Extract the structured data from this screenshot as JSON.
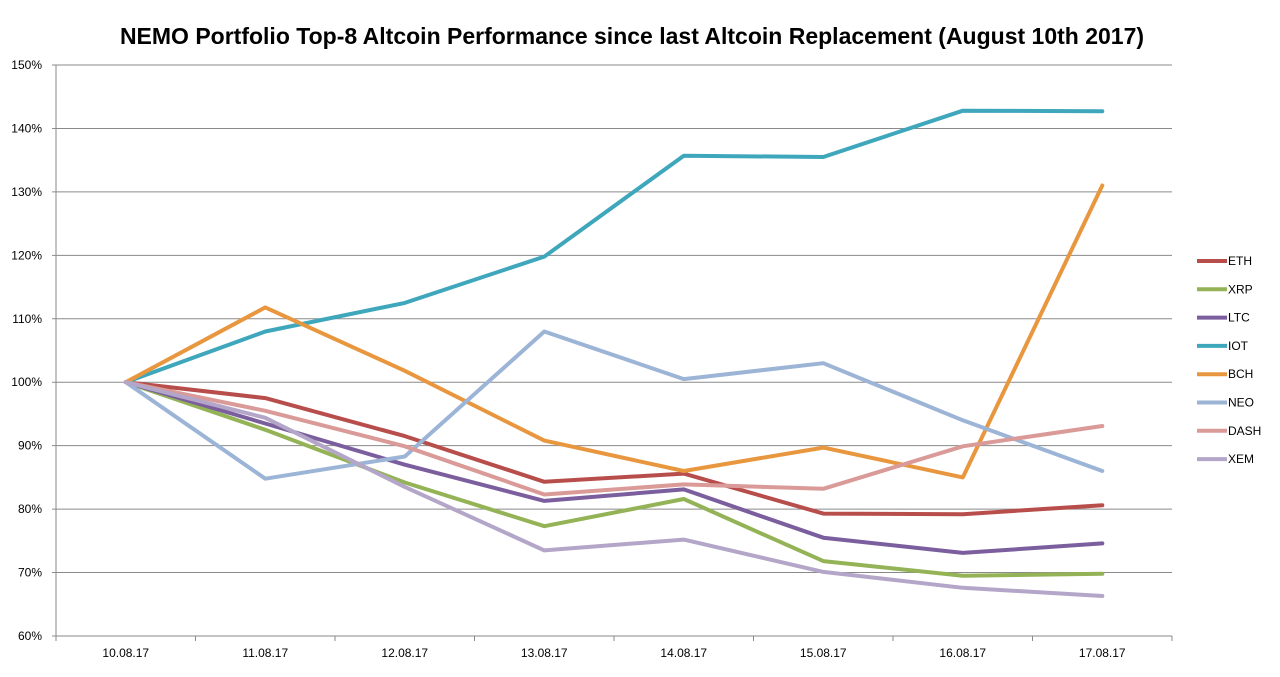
{
  "chart_data": {
    "type": "line",
    "title": "NEMO Portfolio Top-8 Altcoin Performance since last Altcoin Replacement (August 10th 2017)",
    "xlabel": "",
    "ylabel": "",
    "categories": [
      "10.08.17",
      "11.08.17",
      "12.08.17",
      "13.08.17",
      "14.08.17",
      "15.08.17",
      "16.08.17",
      "17.08.17"
    ],
    "ylim": [
      60,
      150
    ],
    "yticks": [
      60,
      70,
      80,
      90,
      100,
      110,
      120,
      130,
      140,
      150
    ],
    "ytick_labels": [
      "60%",
      "70%",
      "80%",
      "90%",
      "100%",
      "110%",
      "120%",
      "130%",
      "140%",
      "150%"
    ],
    "grid": "horizontal",
    "legend_position": "right",
    "series": [
      {
        "name": "ETH",
        "color": "#b84e4b",
        "values": [
          100,
          97.5,
          91.5,
          84.3,
          85.6,
          79.3,
          79.2,
          80.6
        ]
      },
      {
        "name": "XRP",
        "color": "#93b356",
        "values": [
          100,
          92.5,
          84.2,
          77.3,
          81.6,
          71.8,
          69.5,
          69.8
        ]
      },
      {
        "name": "LTC",
        "color": "#7b5e9d",
        "values": [
          100,
          93.5,
          87.0,
          81.3,
          83.1,
          75.5,
          73.1,
          74.6
        ]
      },
      {
        "name": "IOT",
        "color": "#3fa7bc",
        "values": [
          100,
          108.0,
          112.5,
          119.8,
          135.7,
          135.5,
          142.8,
          142.7
        ]
      },
      {
        "name": "BCH",
        "color": "#e8973f",
        "values": [
          100,
          111.8,
          101.8,
          90.8,
          86.0,
          89.7,
          85.0,
          131.0
        ]
      },
      {
        "name": "NEO",
        "color": "#9cb4d6",
        "values": [
          100,
          84.8,
          88.3,
          108.0,
          100.5,
          103.0,
          94.0,
          86.0
        ]
      },
      {
        "name": "DASH",
        "color": "#d99a98",
        "values": [
          100,
          95.5,
          89.9,
          82.3,
          83.9,
          83.2,
          89.9,
          93.1
        ]
      },
      {
        "name": "XEM",
        "color": "#b3a6c8",
        "values": [
          100,
          94.4,
          83.5,
          73.5,
          75.2,
          70.1,
          67.6,
          66.3
        ]
      }
    ]
  }
}
